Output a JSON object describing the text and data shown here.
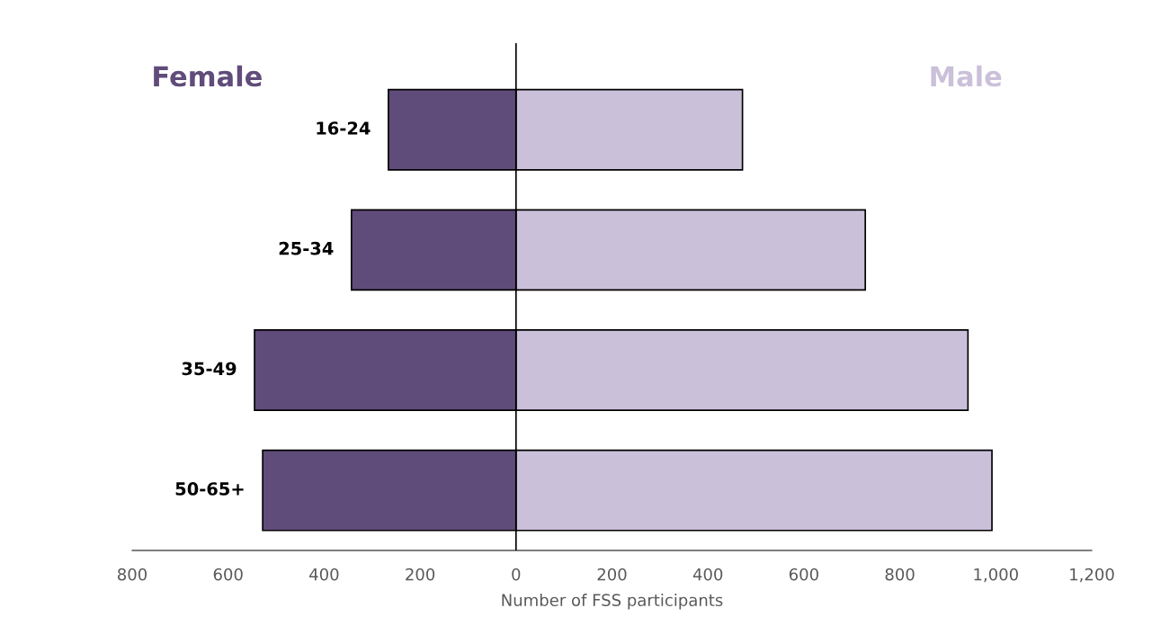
{
  "chart_data": {
    "type": "bar",
    "orientation": "horizontal",
    "stacked": true,
    "xlabel": "Number of FSS participants",
    "categories": [
      "16-24",
      "25-34",
      "35-49",
      "50-65+"
    ],
    "series": [
      {
        "name": "Female",
        "color": "#604c7a",
        "values": [
          -266,
          -343,
          -545,
          -528
        ]
      },
      {
        "name": "Male",
        "color": "#cbc0da",
        "values": [
          472,
          728,
          942,
          992
        ]
      }
    ],
    "xlim": [
      -800,
      1200
    ],
    "xticks": [
      {
        "value": -800,
        "label": "800"
      },
      {
        "value": -600,
        "label": "600"
      },
      {
        "value": -400,
        "label": "400"
      },
      {
        "value": -200,
        "label": "200"
      },
      0,
      200,
      400,
      600,
      800,
      {
        "value": 1000,
        "label": "1,000"
      },
      {
        "value": 1200,
        "label": "1,200"
      }
    ],
    "ref_lines": [
      {
        "axis": "x",
        "value": 0,
        "color": "#000000"
      }
    ],
    "grid": false,
    "legend": false
  }
}
